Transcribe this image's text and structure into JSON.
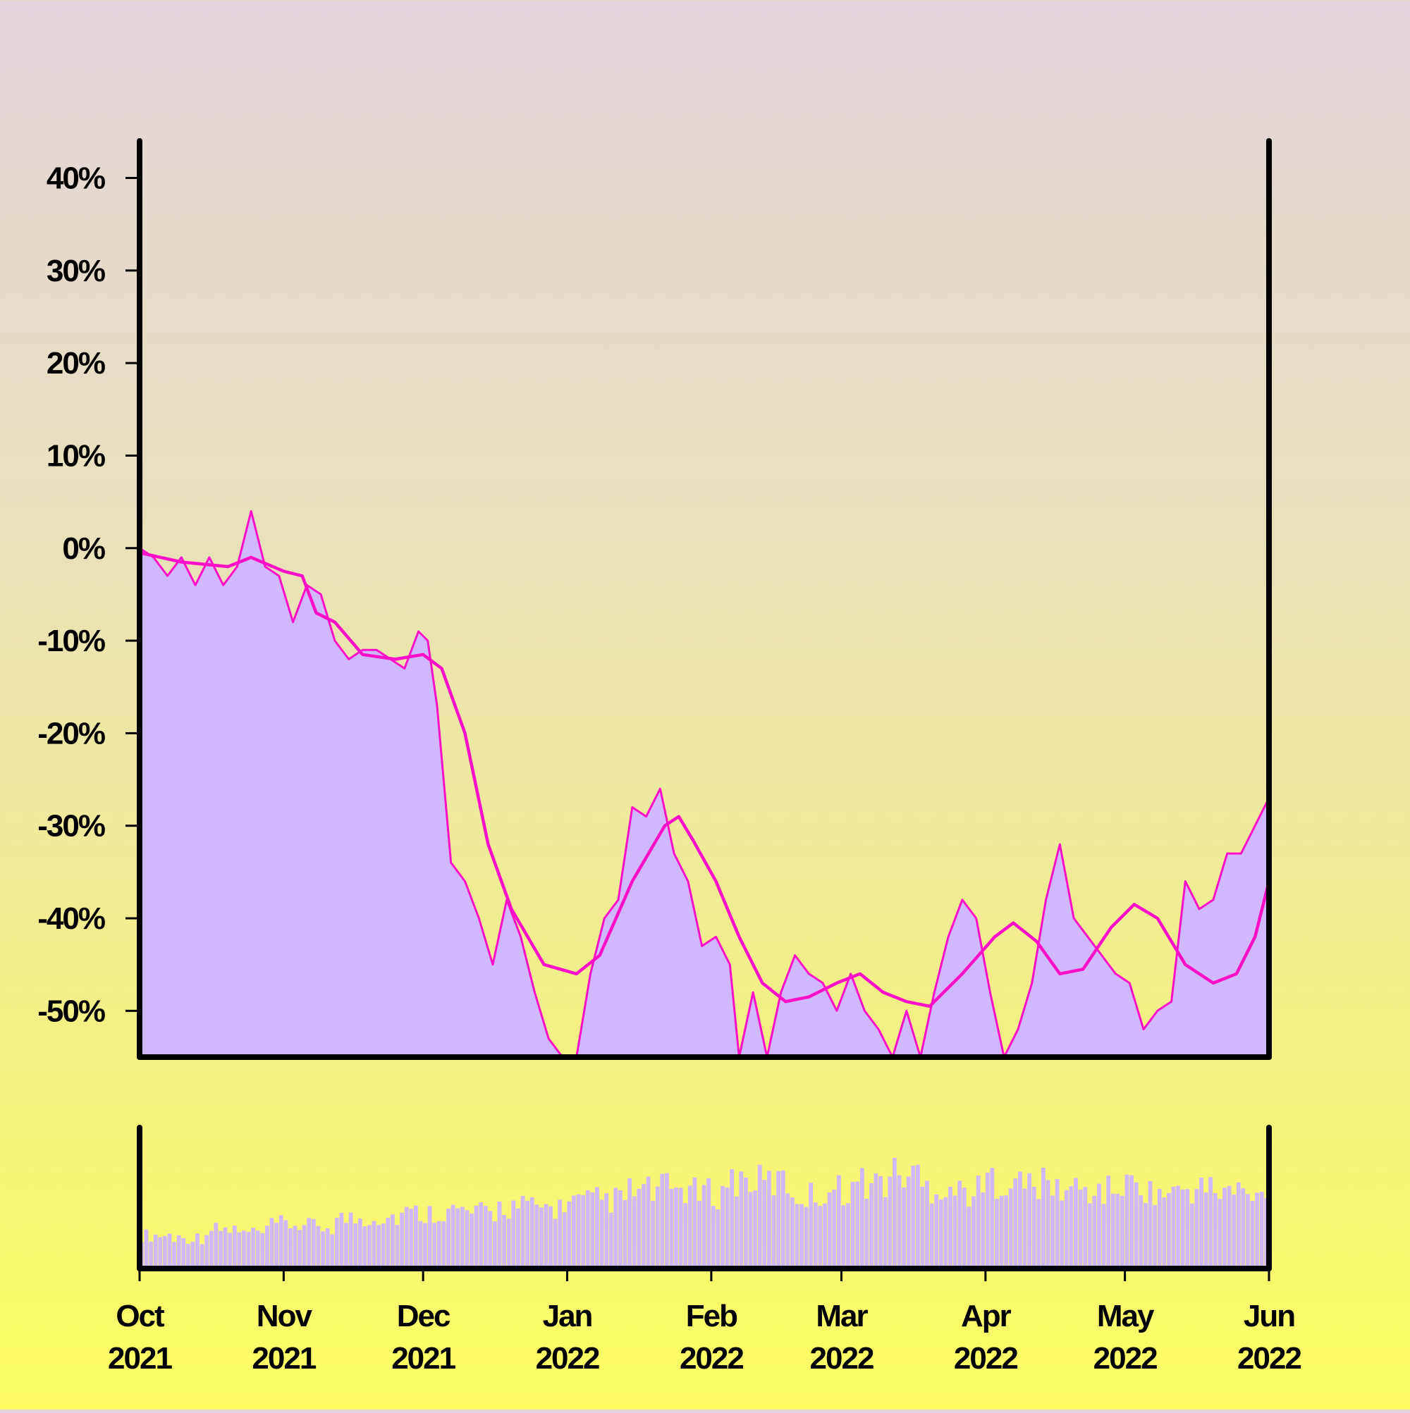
{
  "chart_data": [
    {
      "type": "line",
      "role": "price-change",
      "y_unit": "%",
      "ylim": [
        -55,
        44
      ],
      "yticks": [
        40,
        30,
        20,
        10,
        0,
        -10,
        -20,
        -30,
        -40,
        -50
      ],
      "ytick_labels": [
        "40%",
        "30%",
        "20%",
        "10%",
        "0%",
        "-10%",
        "-20%",
        "-30%",
        "-40%",
        "-50%"
      ],
      "x_range": [
        "2021-10-01",
        "2022-06-01"
      ],
      "series": [
        {
          "kind": "daily-area",
          "color": "#ff10c8",
          "fill": "#d0b8ff",
          "points": [
            [
              "2021-10-01",
              0
            ],
            [
              "2021-10-04",
              -1
            ],
            [
              "2021-10-07",
              -3
            ],
            [
              "2021-10-10",
              -1
            ],
            [
              "2021-10-13",
              -4
            ],
            [
              "2021-10-16",
              -1
            ],
            [
              "2021-10-19",
              -4
            ],
            [
              "2021-10-22",
              -2
            ],
            [
              "2021-10-25",
              4
            ],
            [
              "2021-10-28",
              -2
            ],
            [
              "2021-10-31",
              -3
            ],
            [
              "2021-11-03",
              -8
            ],
            [
              "2021-11-06",
              -4
            ],
            [
              "2021-11-09",
              -5
            ],
            [
              "2021-11-12",
              -10
            ],
            [
              "2021-11-15",
              -12
            ],
            [
              "2021-11-18",
              -11
            ],
            [
              "2021-11-21",
              -11
            ],
            [
              "2021-11-24",
              -12
            ],
            [
              "2021-11-27",
              -13
            ],
            [
              "2021-11-30",
              -9
            ],
            [
              "2021-12-02",
              -10
            ],
            [
              "2021-12-04",
              -17
            ],
            [
              "2021-12-07",
              -34
            ],
            [
              "2021-12-10",
              -36
            ],
            [
              "2021-12-13",
              -40
            ],
            [
              "2021-12-16",
              -45
            ],
            [
              "2021-12-19",
              -38
            ],
            [
              "2021-12-22",
              -42
            ],
            [
              "2021-12-25",
              -48
            ],
            [
              "2021-12-28",
              -53
            ],
            [
              "2021-12-31",
              -58
            ],
            [
              "2022-01-03",
              -56
            ],
            [
              "2022-01-06",
              -46
            ],
            [
              "2022-01-09",
              -40
            ],
            [
              "2022-01-12",
              -38
            ],
            [
              "2022-01-15",
              -28
            ],
            [
              "2022-01-18",
              -29
            ],
            [
              "2022-01-21",
              -26
            ],
            [
              "2022-01-24",
              -33
            ],
            [
              "2022-01-27",
              -36
            ],
            [
              "2022-01-30",
              -43
            ],
            [
              "2022-02-02",
              -42
            ],
            [
              "2022-02-05",
              -45
            ],
            [
              "2022-02-07",
              -55
            ],
            [
              "2022-02-10",
              -48
            ],
            [
              "2022-02-13",
              -55
            ],
            [
              "2022-02-16",
              -48
            ],
            [
              "2022-02-19",
              -44
            ],
            [
              "2022-02-22",
              -46
            ],
            [
              "2022-02-25",
              -47
            ],
            [
              "2022-02-28",
              -50
            ],
            [
              "2022-03-03",
              -46
            ],
            [
              "2022-03-06",
              -50
            ],
            [
              "2022-03-09",
              -52
            ],
            [
              "2022-03-12",
              -55
            ],
            [
              "2022-03-15",
              -50
            ],
            [
              "2022-03-18",
              -57
            ],
            [
              "2022-03-21",
              -48
            ],
            [
              "2022-03-24",
              -42
            ],
            [
              "2022-03-27",
              -38
            ],
            [
              "2022-03-30",
              -40
            ],
            [
              "2022-04-02",
              -48
            ],
            [
              "2022-04-05",
              -55
            ],
            [
              "2022-04-08",
              -52
            ],
            [
              "2022-04-11",
              -47
            ],
            [
              "2022-04-14",
              -38
            ],
            [
              "2022-04-17",
              -32
            ],
            [
              "2022-04-20",
              -40
            ],
            [
              "2022-04-23",
              -42
            ],
            [
              "2022-04-26",
              -44
            ],
            [
              "2022-04-29",
              -46
            ],
            [
              "2022-05-02",
              -47
            ],
            [
              "2022-05-05",
              -52
            ],
            [
              "2022-05-08",
              -50
            ],
            [
              "2022-05-11",
              -49
            ],
            [
              "2022-05-14",
              -36
            ],
            [
              "2022-05-17",
              -39
            ],
            [
              "2022-05-20",
              -38
            ],
            [
              "2022-05-23",
              -33
            ],
            [
              "2022-05-26",
              -33
            ],
            [
              "2022-05-29",
              -30
            ],
            [
              "2022-06-01",
              -27
            ]
          ]
        },
        {
          "kind": "moving-average",
          "color": "#ff10c8",
          "points": [
            [
              "2021-10-01",
              -0.5
            ],
            [
              "2021-10-10",
              -1.5
            ],
            [
              "2021-10-20",
              -2
            ],
            [
              "2021-10-25",
              -1
            ],
            [
              "2021-11-01",
              -2.5
            ],
            [
              "2021-11-05",
              -3
            ],
            [
              "2021-11-08",
              -7
            ],
            [
              "2021-11-12",
              -8
            ],
            [
              "2021-11-18",
              -11.5
            ],
            [
              "2021-11-25",
              -12
            ],
            [
              "2021-12-01",
              -11.5
            ],
            [
              "2021-12-05",
              -13
            ],
            [
              "2021-12-10",
              -20
            ],
            [
              "2021-12-15",
              -32
            ],
            [
              "2021-12-20",
              -39
            ],
            [
              "2021-12-27",
              -45
            ],
            [
              "2022-01-03",
              -46
            ],
            [
              "2022-01-08",
              -44
            ],
            [
              "2022-01-15",
              -36
            ],
            [
              "2022-01-22",
              -30
            ],
            [
              "2022-01-25",
              -29
            ],
            [
              "2022-01-28",
              -31.5
            ],
            [
              "2022-02-02",
              -36
            ],
            [
              "2022-02-07",
              -42
            ],
            [
              "2022-02-12",
              -47
            ],
            [
              "2022-02-17",
              -49
            ],
            [
              "2022-02-22",
              -48.5
            ],
            [
              "2022-02-28",
              -47
            ],
            [
              "2022-03-05",
              -46
            ],
            [
              "2022-03-10",
              -48
            ],
            [
              "2022-03-15",
              -49
            ],
            [
              "2022-03-20",
              -49.5
            ],
            [
              "2022-03-27",
              -46
            ],
            [
              "2022-04-03",
              -42
            ],
            [
              "2022-04-07",
              -40.5
            ],
            [
              "2022-04-12",
              -42.5
            ],
            [
              "2022-04-17",
              -46
            ],
            [
              "2022-04-22",
              -45.5
            ],
            [
              "2022-04-28",
              -41
            ],
            [
              "2022-05-03",
              -38.5
            ],
            [
              "2022-05-08",
              -40
            ],
            [
              "2022-05-14",
              -45
            ],
            [
              "2022-05-20",
              -47
            ],
            [
              "2022-05-25",
              -46
            ],
            [
              "2022-05-29",
              -42
            ],
            [
              "2022-06-01",
              -36
            ]
          ]
        }
      ]
    },
    {
      "type": "bar",
      "role": "volume",
      "color": "#d0b8ff",
      "x_range": [
        "2021-10-01",
        "2022-06-01"
      ],
      "weekly_relative_volume": [
        0.3,
        0.28,
        0.35,
        0.32,
        0.4,
        0.38,
        0.45,
        0.47,
        0.5,
        0.52,
        0.5,
        0.56,
        0.55,
        0.6,
        0.62,
        0.7,
        0.72,
        0.68,
        0.8,
        0.78,
        0.66,
        0.72,
        0.78,
        0.85,
        0.74,
        0.7,
        0.8,
        0.76,
        0.72,
        0.7,
        0.75,
        0.68,
        0.72,
        0.7,
        0.64,
        0.68,
        0.66,
        0.62,
        0.65
      ]
    }
  ],
  "x_axis": {
    "ticks": [
      "2021-10-01",
      "2021-11-01",
      "2021-12-01",
      "2022-01-01",
      "2022-02-01",
      "2022-03-01",
      "2022-04-01",
      "2022-05-01",
      "2022-06-01"
    ],
    "labels": [
      [
        "Oct",
        "2021"
      ],
      [
        "Nov",
        "2021"
      ],
      [
        "Dec",
        "2021"
      ],
      [
        "Jan",
        "2022"
      ],
      [
        "Feb",
        "2022"
      ],
      [
        "Mar",
        "2022"
      ],
      [
        "Apr",
        "2022"
      ],
      [
        "May",
        "2022"
      ],
      [
        "Jun",
        "2022"
      ]
    ]
  },
  "colors": {
    "line": "#ff10c8",
    "fill": "#d0b8ff",
    "axis": "#000000"
  }
}
